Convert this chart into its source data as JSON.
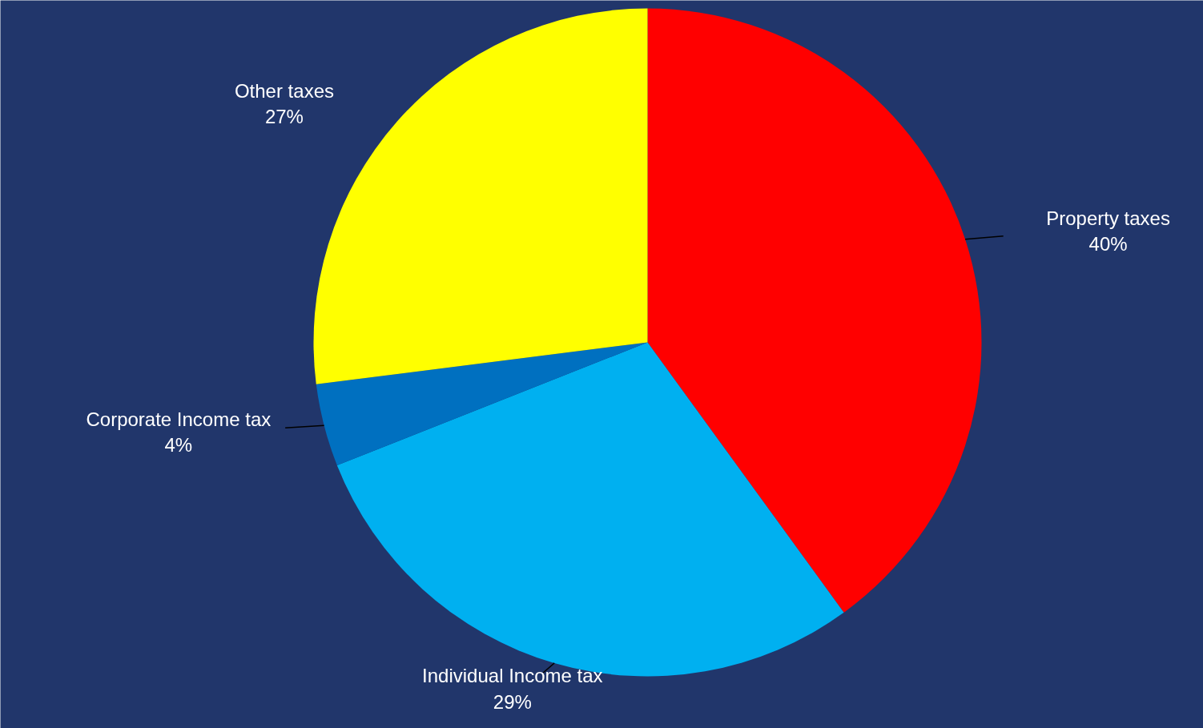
{
  "chart_data": {
    "type": "pie",
    "categories": [
      "Property taxes",
      "Individual Income tax",
      "Corporate Income tax",
      "Other taxes"
    ],
    "values": [
      40,
      29,
      4,
      27
    ],
    "colors": [
      "#ff0000",
      "#00b0f0",
      "#0070c0",
      "#ffff00"
    ],
    "value_labels": [
      "40%",
      "29%",
      "4%",
      "27%"
    ]
  }
}
